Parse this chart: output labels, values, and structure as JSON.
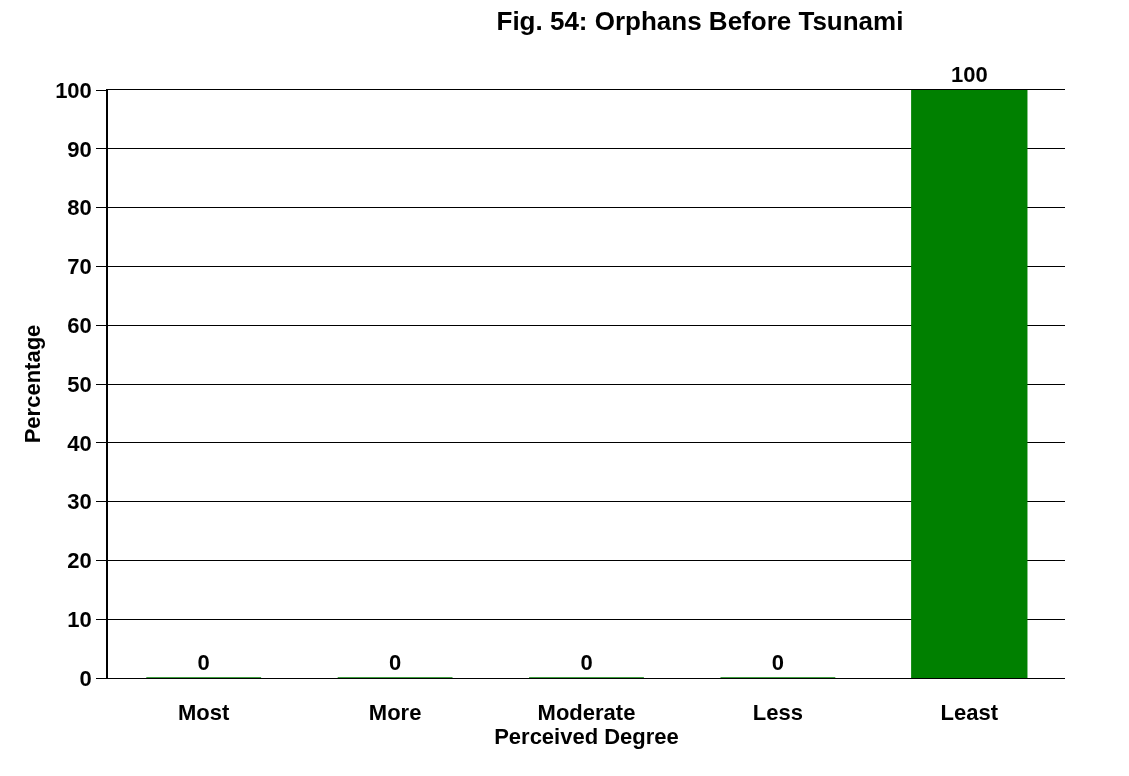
{
  "chart_data": {
    "type": "bar",
    "title": "Fig. 54: Orphans Before Tsunami",
    "xlabel": "Perceived Degree",
    "ylabel": "Percentage",
    "categories": [
      "Most",
      "More",
      "Moderate",
      "Less",
      "Least"
    ],
    "values": [
      0,
      0,
      0,
      0,
      100
    ],
    "color": "#008000",
    "ylim": [
      0,
      100
    ],
    "yticks": [
      0,
      10,
      20,
      30,
      40,
      50,
      60,
      70,
      80,
      90,
      100
    ],
    "grid": "y",
    "data_labels": true,
    "legend": false
  }
}
